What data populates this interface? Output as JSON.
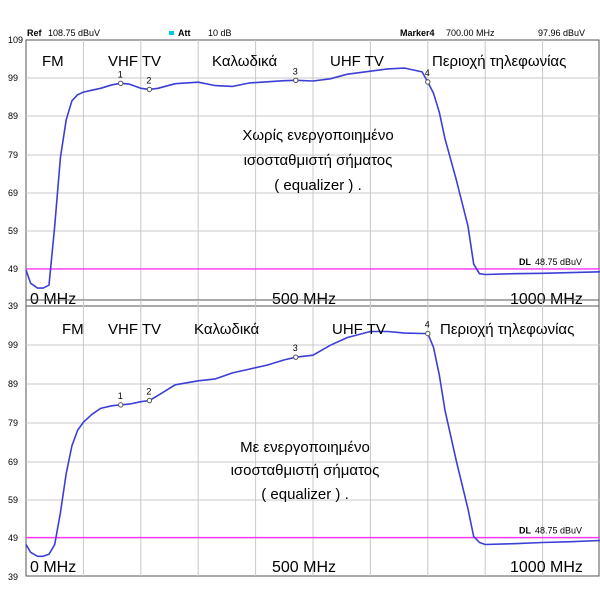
{
  "header": {
    "ref_label": "Ref",
    "ref_value": "108.75 dBuV",
    "att_label": "Att",
    "att_value": "10 dB",
    "marker_label": "Marker4",
    "marker_freq": "700.00 MHz",
    "marker_level": "97.96 dBuV",
    "att_color": "#00c8e0"
  },
  "colors": {
    "trace": "#3b3fd6",
    "display_line": "#ff33ff",
    "grid": "#c8c8c8",
    "frame": "#555555"
  },
  "chart_data": [
    {
      "type": "line",
      "title": "",
      "y_ticks": [
        "109",
        "99",
        "89",
        "79",
        "69",
        "59",
        "49",
        "39"
      ],
      "ylim": [
        39,
        109
      ],
      "xlim": [
        0,
        1000
      ],
      "x_labels": [
        "0 MHz",
        "500 MHz",
        "1000 MHz"
      ],
      "band_labels": [
        "FM",
        "VHF TV",
        "Καλωδικά",
        "UHF TV",
        "Περιοχή τηλεφωνίας"
      ],
      "note_lines": [
        "Χωρίς ενεργοποιημένο",
        "ισοσταθμιστή σήματος",
        "( equalizer ) ."
      ],
      "display_line": {
        "label": "DL",
        "value": "48.75 dBuV",
        "level": 48.75
      },
      "markers": [
        {
          "label": "1",
          "x": 165,
          "y": 97.6
        },
        {
          "label": "2",
          "x": 215,
          "y": 96.0
        },
        {
          "label": "3",
          "x": 470,
          "y": 98.4
        },
        {
          "label": "4",
          "x": 700,
          "y": 97.96
        }
      ],
      "series": [
        {
          "x": [
            0,
            8,
            20,
            30,
            40,
            50,
            60,
            70,
            80,
            90,
            100,
            115,
            130,
            150,
            165,
            180,
            200,
            215,
            230,
            260,
            300,
            330,
            360,
            390,
            420,
            450,
            470,
            500,
            530,
            560,
            600,
            630,
            660,
            690,
            700,
            710,
            720,
            730,
            750,
            770,
            780,
            790,
            800,
            850,
            900,
            950,
            1000
          ],
          "y": [
            48.5,
            45.0,
            43.7,
            43.7,
            44.5,
            60.0,
            78.0,
            88.0,
            93.0,
            94.6,
            95.3,
            95.8,
            96.3,
            97.2,
            97.6,
            97.4,
            96.3,
            96.0,
            96.3,
            97.5,
            97.9,
            97.0,
            96.8,
            97.7,
            98.0,
            98.3,
            98.4,
            98.2,
            98.8,
            100.0,
            100.8,
            101.4,
            101.6,
            100.6,
            97.96,
            95.0,
            90.0,
            83.0,
            72.0,
            60.0,
            50.0,
            47.5,
            47.3,
            47.5,
            47.6,
            47.8,
            48.0
          ]
        }
      ]
    },
    {
      "type": "line",
      "title": "",
      "y_ticks": [
        "99",
        "89",
        "79",
        "69",
        "59",
        "49",
        "39"
      ],
      "ylim": [
        39,
        109
      ],
      "xlim": [
        0,
        1000
      ],
      "x_labels": [
        "0 MHz",
        "500 MHz",
        "1000 MHz"
      ],
      "band_labels": [
        "FM",
        "VHF TV",
        "Καλωδικά",
        "UHF TV",
        "Περιοχή τηλεφωνίας"
      ],
      "note_lines": [
        "Με ενεργοποιημένο",
        "ισοσταθμιστή σήματος",
        "( equalizer ) ."
      ],
      "display_line": {
        "label": "DL",
        "value": "48.75 dBuV",
        "level": 48.75
      },
      "markers": [
        {
          "label": "1",
          "x": 165,
          "y": 82.4
        },
        {
          "label": "2",
          "x": 215,
          "y": 83.5
        },
        {
          "label": "3",
          "x": 470,
          "y": 94.5
        },
        {
          "label": "4",
          "x": 700,
          "y": 100.5
        }
      ],
      "series": [
        {
          "x": [
            0,
            8,
            20,
            30,
            40,
            50,
            60,
            70,
            80,
            90,
            100,
            115,
            130,
            150,
            165,
            180,
            200,
            215,
            230,
            260,
            300,
            330,
            360,
            390,
            420,
            450,
            470,
            500,
            530,
            560,
            600,
            630,
            660,
            690,
            700,
            710,
            720,
            730,
            750,
            770,
            780,
            790,
            800,
            850,
            900,
            950,
            1000
          ],
          "y": [
            47.0,
            45.0,
            44.0,
            44.0,
            44.5,
            47.0,
            55.0,
            65.0,
            72.0,
            76.0,
            78.0,
            80.0,
            81.5,
            82.2,
            82.4,
            82.6,
            83.2,
            83.5,
            84.8,
            87.5,
            88.5,
            89.0,
            90.5,
            91.5,
            92.5,
            93.8,
            94.5,
            95.0,
            97.5,
            99.5,
            101.0,
            101.0,
            100.6,
            100.5,
            100.5,
            97.0,
            90.0,
            81.0,
            68.0,
            56.0,
            49.0,
            47.5,
            47.0,
            47.2,
            47.5,
            47.7,
            48.0
          ]
        }
      ]
    }
  ]
}
